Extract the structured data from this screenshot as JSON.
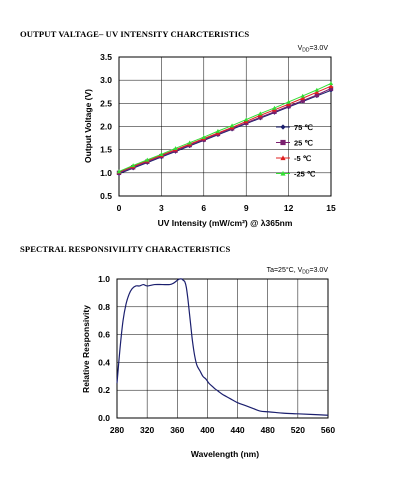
{
  "chart_data": [
    {
      "type": "line",
      "title": "OUTPUT VALTAGE– UV INTENSITY CHARCTERISTICS",
      "condition": "V",
      "condition_sub": "DD",
      "condition_rest": "=3.0V",
      "xlabel": "UV Intensity (mW/cm²) @ λ365nm",
      "ylabel": "Output Voltage (V)",
      "xlim": [
        0,
        15
      ],
      "ylim": [
        0.5,
        3.5
      ],
      "xticks": [
        "0",
        "3",
        "6",
        "9",
        "12",
        "15"
      ],
      "yticks": [
        "0.5",
        "1.0",
        "1.5",
        "2.0",
        "2.5",
        "3.0",
        "3.5"
      ],
      "x": [
        0,
        1,
        2,
        3,
        4,
        5,
        6,
        7,
        8,
        9,
        10,
        11,
        12,
        13,
        14,
        15
      ],
      "series": [
        {
          "name": "75 ℃",
          "marker": "diamond",
          "color": "#1b1f6e",
          "values": [
            0.98,
            1.1,
            1.22,
            1.34,
            1.46,
            1.58,
            1.7,
            1.82,
            1.94,
            2.06,
            2.18,
            2.3,
            2.42,
            2.54,
            2.66,
            2.78
          ]
        },
        {
          "name": "25 ℃",
          "marker": "square",
          "color": "#7a1f6e",
          "values": [
            1.0,
            1.12,
            1.24,
            1.36,
            1.48,
            1.6,
            1.72,
            1.84,
            1.96,
            2.08,
            2.2,
            2.32,
            2.44,
            2.56,
            2.68,
            2.82
          ]
        },
        {
          "name": "-5 ℃",
          "marker": "triangle",
          "color": "#e02020",
          "values": [
            1.02,
            1.14,
            1.26,
            1.38,
            1.5,
            1.62,
            1.74,
            1.86,
            1.98,
            2.11,
            2.24,
            2.36,
            2.48,
            2.61,
            2.74,
            2.87
          ]
        },
        {
          "name": "-25 ℃",
          "marker": "triangle",
          "color": "#33dd33",
          "values": [
            1.03,
            1.16,
            1.28,
            1.4,
            1.53,
            1.65,
            1.77,
            1.9,
            2.02,
            2.15,
            2.28,
            2.4,
            2.53,
            2.66,
            2.79,
            2.93
          ]
        }
      ],
      "grid": true,
      "legend": "right"
    },
    {
      "type": "line",
      "title": "SPECTRAL RESPONSIVILITY CHARACTERISTICS",
      "condition_pre": "Ta=25°C, V",
      "condition_sub": "DD",
      "condition_rest": "=3.0V",
      "xlabel": "Wavelength (nm)",
      "ylabel": "Relative Responsivity",
      "xlim": [
        280,
        560
      ],
      "ylim": [
        0,
        1.0
      ],
      "xticks": [
        "280",
        "320",
        "360",
        "400",
        "440",
        "480",
        "520",
        "560"
      ],
      "yticks": [
        "0.0",
        "0.2",
        "0.4",
        "0.6",
        "0.8",
        "1.0"
      ],
      "color": "#1b1f6e",
      "x": [
        280,
        284,
        288,
        292,
        296,
        300,
        305,
        310,
        315,
        320,
        330,
        340,
        350,
        355,
        360,
        363,
        366,
        368,
        370,
        372,
        374,
        376,
        378,
        380,
        383,
        386,
        390,
        394,
        398,
        402,
        406,
        410,
        415,
        420,
        430,
        440,
        450,
        460,
        470,
        480,
        490,
        500,
        520,
        540,
        560
      ],
      "y": [
        0.25,
        0.5,
        0.7,
        0.82,
        0.89,
        0.93,
        0.95,
        0.95,
        0.96,
        0.95,
        0.96,
        0.96,
        0.96,
        0.97,
        0.99,
        1.0,
        1.0,
        0.99,
        0.98,
        0.94,
        0.86,
        0.76,
        0.66,
        0.56,
        0.45,
        0.38,
        0.34,
        0.3,
        0.28,
        0.25,
        0.23,
        0.21,
        0.19,
        0.17,
        0.14,
        0.11,
        0.09,
        0.07,
        0.05,
        0.045,
        0.04,
        0.035,
        0.03,
        0.025,
        0.02
      ],
      "grid": true
    }
  ]
}
